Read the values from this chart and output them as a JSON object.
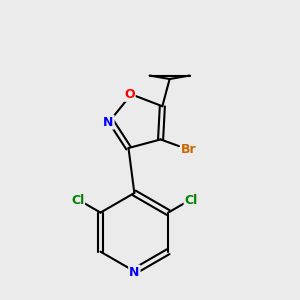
{
  "background_color": "#ebebeb",
  "bond_color": "#000000",
  "atom_colors": {
    "O": "#ff0000",
    "N": "#0000ff",
    "Br": "#cc6600",
    "Cl": "#008000"
  },
  "figsize": [
    3.0,
    3.0
  ],
  "dpi": 100
}
